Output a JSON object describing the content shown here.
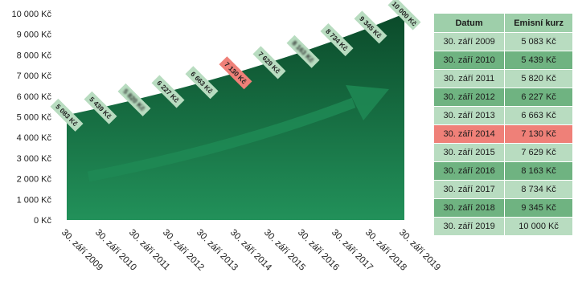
{
  "chart_data": {
    "type": "area",
    "x": [
      "30. září 2009",
      "30. září 2010",
      "30. září 2011",
      "30. září 2012",
      "30. září 2013",
      "30. září 2014",
      "30. září 2015",
      "30. září 2016",
      "30. září 2017",
      "30. září 2018",
      "30. září 2019"
    ],
    "values": [
      5083,
      5439,
      5820,
      6227,
      6663,
      7130,
      7629,
      8163,
      8734,
      9345,
      10000
    ],
    "data_labels": [
      "5 083 Kč",
      "5 439 Kč",
      "5 820 Kč",
      "6 227 Kč",
      "6 663 Kč",
      "7 130 Kč",
      "7 629 Kč",
      "8 163 Kč",
      "8 734 Kč",
      "9 345 Kč",
      "10 000 Kč"
    ],
    "blurred_label_indices": [
      2,
      7
    ],
    "highlight_index": 5,
    "y_ticks": [
      "0 Kč",
      "1 000 Kč",
      "2 000 Kč",
      "3 000 Kč",
      "4 000 Kč",
      "5 000 Kč",
      "6 000 Kč",
      "7 000 Kč",
      "8 000 Kč",
      "9 000 Kč",
      "10 000 Kč"
    ],
    "ylim": [
      0,
      10000
    ],
    "colors": {
      "area_top": "#0b4a2a",
      "area_bottom": "#22915a",
      "label_bg": "#b8dcc0",
      "highlight_bg": "#ef8078",
      "arrow": "#1e8a55"
    },
    "legend": "none",
    "grid": false
  },
  "table": {
    "headers": [
      "Datum",
      "Emisní kurz"
    ],
    "rows": [
      {
        "date": "30. září 2009",
        "rate": "5 083 Kč"
      },
      {
        "date": "30. září 2010",
        "rate": "5 439 Kč"
      },
      {
        "date": "30. září 2011",
        "rate": "5 820 Kč"
      },
      {
        "date": "30. září 2012",
        "rate": "6 227 Kč"
      },
      {
        "date": "30. září 2013",
        "rate": "6 663 Kč"
      },
      {
        "date": "30. září 2014",
        "rate": "7 130 Kč"
      },
      {
        "date": "30. září 2015",
        "rate": "7 629 Kč"
      },
      {
        "date": "30. září 2016",
        "rate": "8 163 Kč"
      },
      {
        "date": "30. září 2017",
        "rate": "8 734 Kč"
      },
      {
        "date": "30. září 2018",
        "rate": "9 345 Kč"
      },
      {
        "date": "30. září 2019",
        "rate": "10 000 Kč"
      }
    ]
  }
}
